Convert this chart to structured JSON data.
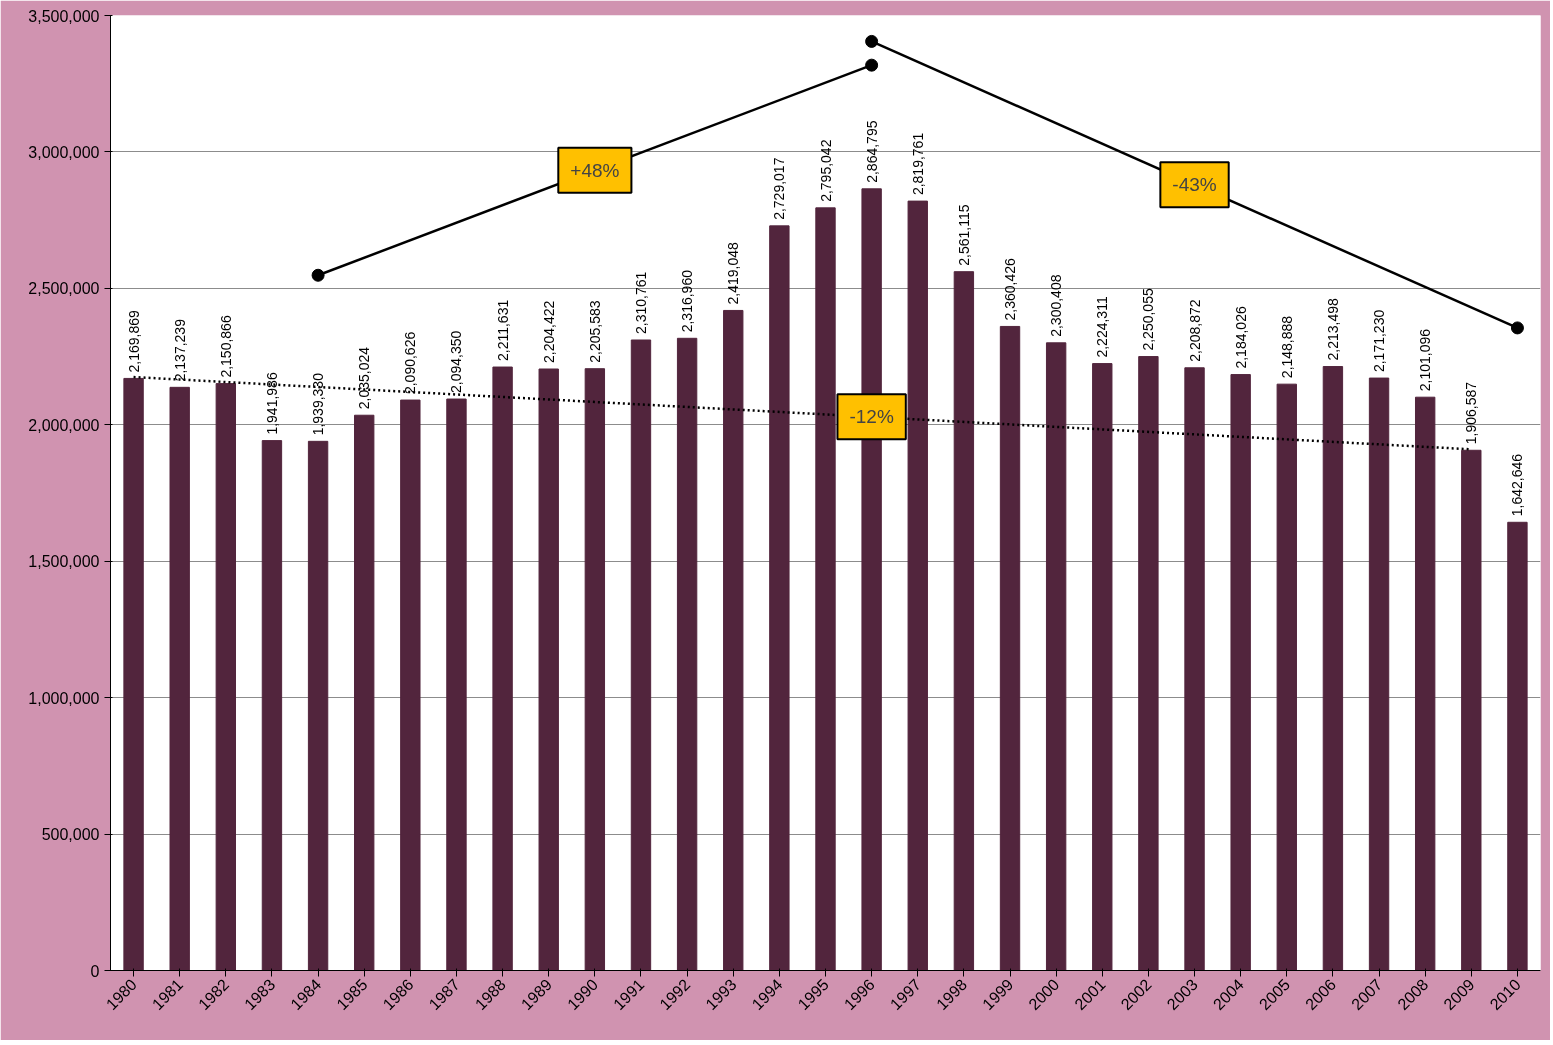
{
  "chart_data": {
    "type": "bar",
    "x": [
      1980,
      1981,
      1982,
      1983,
      1984,
      1985,
      1986,
      1987,
      1988,
      1989,
      1990,
      1991,
      1992,
      1993,
      1994,
      1995,
      1996,
      1997,
      1998,
      1999,
      2000,
      2001,
      2002,
      2003,
      2004,
      2005,
      2006,
      2007,
      2008,
      2009,
      2010
    ],
    "series": [
      {
        "color": "#52253d",
        "values": [
          2169869,
          2137239,
          2150866,
          1941986,
          1939330,
          2035024,
          2090626,
          2094350,
          2211631,
          2204422,
          2205583,
          2310761,
          2316960,
          2419048,
          2729017,
          2795042,
          2864795,
          2819761,
          2561115,
          2360426,
          2300408,
          2224311,
          2250055,
          2208872,
          2184026,
          2148888,
          2213498,
          2171230,
          2101096,
          1906587,
          1642646
        ],
        "value_labels": [
          "2,169,869",
          "2,137,239",
          "2,150,866",
          "1,941,986",
          "1,939,330",
          "2,035,024",
          "2,090,626",
          "2,094,350",
          "2,211,631",
          "2,204,422",
          "2,205,583",
          "2,310,761",
          "2,316,960",
          "2,419,048",
          "2,729,017",
          "2,795,042",
          "2,864,795",
          "2,819,761",
          "2,561,115",
          "2,360,426",
          "2,300,408",
          "2,224,311",
          "2,250,055",
          "2,208,872",
          "2,184,026",
          "2,148,888",
          "2,213,498",
          "2,171,230",
          "2,101,096",
          "1,906,587",
          "1,642,646"
        ]
      },
      {
        "type": "line",
        "color": "#000000",
        "line_style": "dotted",
        "marker": "none",
        "x": [
          1980,
          2009
        ],
        "values": [
          2175000,
          1910000
        ]
      },
      {
        "type": "line",
        "color": "#000000",
        "line_style": "solid",
        "marker": "circle",
        "x": [
          1984,
          1996
        ],
        "values": [
          2548000,
          3318000
        ]
      },
      {
        "type": "line",
        "color": "#000000",
        "line_style": "solid",
        "marker": "circle",
        "x": [
          1996,
          2010
        ],
        "values": [
          3405000,
          2355000
        ]
      }
    ],
    "xlim": [
      1979.5,
      2010.5
    ],
    "xticks": [
      1980,
      1981,
      1982,
      1983,
      1984,
      1985,
      1986,
      1987,
      1988,
      1989,
      1990,
      1991,
      1992,
      1993,
      1994,
      1995,
      1996,
      1997,
      1998,
      1999,
      2000,
      2001,
      2002,
      2003,
      2004,
      2005,
      2006,
      2007,
      2008,
      2009,
      2010
    ],
    "ylim": [
      0,
      3500000
    ],
    "yticks": [
      0,
      {
        "value": 500000,
        "label": "500,000"
      },
      {
        "value": 1000000,
        "label": "1,000,000"
      },
      {
        "value": 1500000,
        "label": "1,500,000"
      },
      {
        "value": 2000000,
        "label": "2,000,000"
      },
      {
        "value": 2500000,
        "label": "2,500,000"
      },
      {
        "value": 3000000,
        "label": "3,000,000"
      },
      {
        "value": 3500000,
        "label": "3,500,000"
      }
    ],
    "grid": "y",
    "annotations": [
      {
        "text": "+48%",
        "x": 1990,
        "y": 2933000
      },
      {
        "text": "-43%",
        "x": 2003,
        "y": 2880000
      },
      {
        "text": "-12%",
        "x": 1996,
        "y": 2029000
      }
    ]
  }
}
